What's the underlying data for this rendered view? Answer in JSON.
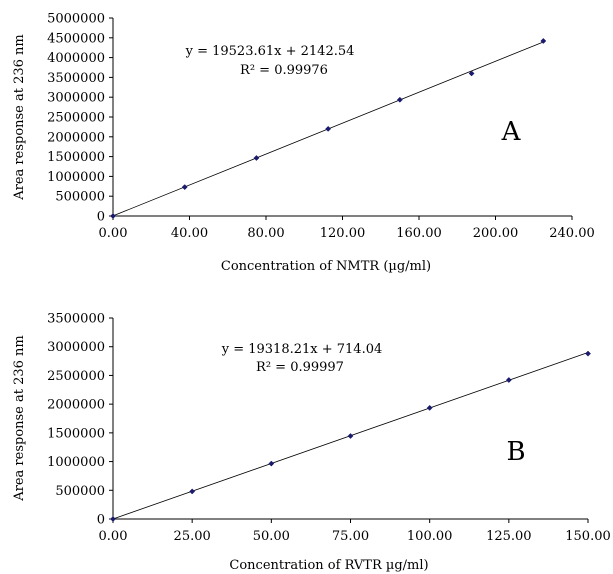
{
  "chart_data": [
    {
      "type": "scatter",
      "panel_label": "A",
      "xlabel": "Concentration of NMTR (µg/ml)",
      "ylabel": "Area response at 236 nm",
      "xlim": [
        0,
        240
      ],
      "ylim": [
        0,
        5000000
      ],
      "x_ticks": [
        "0.00",
        "40.00",
        "80.00",
        "120.00",
        "160.00",
        "200.00",
        "240.00"
      ],
      "y_ticks": [
        "0",
        "500000",
        "1000000",
        "1500000",
        "2000000",
        "2500000",
        "3000000",
        "3500000",
        "4000000",
        "4500000",
        "5000000"
      ],
      "x_tick_values": [
        0,
        40,
        80,
        120,
        160,
        200,
        240
      ],
      "y_tick_values": [
        0,
        500000,
        1000000,
        1500000,
        2000000,
        2500000,
        3000000,
        3500000,
        4000000,
        4500000,
        5000000
      ],
      "points": [
        {
          "x": 0,
          "y": 0
        },
        {
          "x": 37.5,
          "y": 730000
        },
        {
          "x": 75,
          "y": 1465000
        },
        {
          "x": 112.5,
          "y": 2200000
        },
        {
          "x": 150,
          "y": 2935000
        },
        {
          "x": 187.5,
          "y": 3600000
        },
        {
          "x": 225,
          "y": 4420000
        }
      ],
      "trendline": {
        "slope": 19523.61,
        "intercept": 2142.54,
        "x_range": [
          0,
          225
        ]
      },
      "equation": "y = 19523.61x + 2142.54",
      "r_squared": "R² = 0.99976",
      "grid": false
    },
    {
      "type": "scatter",
      "panel_label": "B",
      "xlabel": "Concentration of RVTR µg/ml)",
      "ylabel": "Area response at 236 nm",
      "xlim": [
        0,
        150
      ],
      "ylim": [
        0,
        3500000
      ],
      "x_ticks": [
        "0.00",
        "25.00",
        "50.00",
        "75.00",
        "100.00",
        "125.00",
        "150.00"
      ],
      "y_ticks": [
        "0",
        "500000",
        "1000000",
        "1500000",
        "2000000",
        "2500000",
        "3000000",
        "3500000"
      ],
      "x_tick_values": [
        0,
        25,
        50,
        75,
        100,
        125,
        150
      ],
      "y_tick_values": [
        0,
        500000,
        1000000,
        1500000,
        2000000,
        2500000,
        3000000,
        3500000
      ],
      "points": [
        {
          "x": 0,
          "y": 0
        },
        {
          "x": 25,
          "y": 480000
        },
        {
          "x": 50,
          "y": 965000
        },
        {
          "x": 75,
          "y": 1445000
        },
        {
          "x": 100,
          "y": 1935000
        },
        {
          "x": 125,
          "y": 2420000
        },
        {
          "x": 150,
          "y": 2880000
        }
      ],
      "trendline": {
        "slope": 19318.21,
        "intercept": 714.04,
        "x_range": [
          0,
          150
        ]
      },
      "equation": "y = 19318.21x + 714.04",
      "r_squared": "R² = 0.99997",
      "grid": false
    }
  ]
}
